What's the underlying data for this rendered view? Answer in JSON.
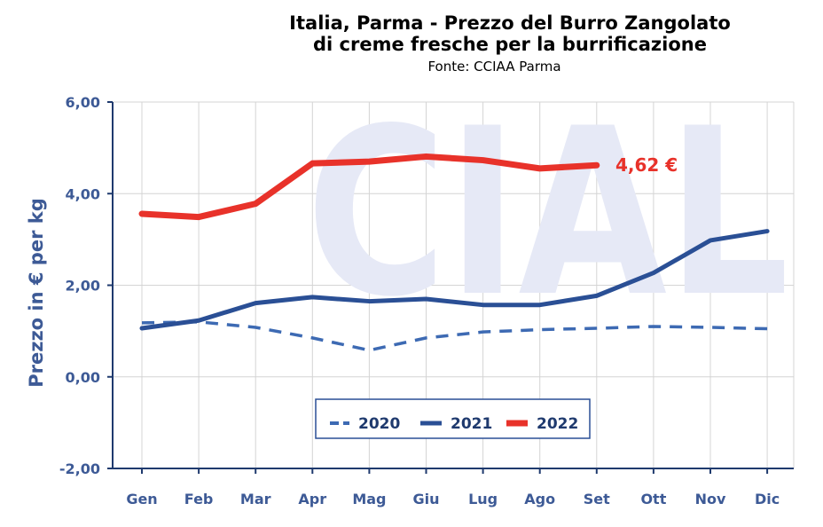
{
  "chart_data": {
    "type": "line",
    "title_line1": "Italia, Parma - Prezzo del Burro Zangolato",
    "title_line2": "di creme fresche per la burrificazione",
    "subtitle": "Fonte: CCIAA Parma",
    "watermark": "CIAL",
    "ylabel": "Prezzo in € per kg",
    "xlabel": "",
    "categories": [
      "Gen",
      "Feb",
      "Mar",
      "Apr",
      "Mag",
      "Giu",
      "Lug",
      "Ago",
      "Set",
      "Ott",
      "Nov",
      "Dic"
    ],
    "ylim": [
      -2,
      6
    ],
    "yticks": [
      6,
      4,
      2,
      0,
      -2
    ],
    "ytick_labels": [
      "6,00",
      "4,00",
      "2,00",
      "0,00",
      "-2,00"
    ],
    "grid": true,
    "legend_position": "bottom-center",
    "series": [
      {
        "name": "2020",
        "style": "dashed",
        "color": "#3d6ab3",
        "values": [
          1.18,
          1.2,
          1.08,
          0.85,
          0.58,
          0.85,
          0.98,
          1.03,
          1.06,
          1.1,
          1.08,
          1.05
        ]
      },
      {
        "name": "2021",
        "style": "solid",
        "color": "#2a4f95",
        "values": [
          1.06,
          1.23,
          1.61,
          1.74,
          1.65,
          1.7,
          1.57,
          1.57,
          1.77,
          2.27,
          2.98,
          3.18
        ]
      },
      {
        "name": "2022",
        "style": "solid",
        "color": "#e8322a",
        "values": [
          3.56,
          3.49,
          3.78,
          4.66,
          4.7,
          4.81,
          4.73,
          4.55,
          4.62,
          null,
          null,
          null
        ]
      }
    ],
    "annotation": {
      "text": "4,62 €",
      "color": "#e8322a"
    }
  }
}
